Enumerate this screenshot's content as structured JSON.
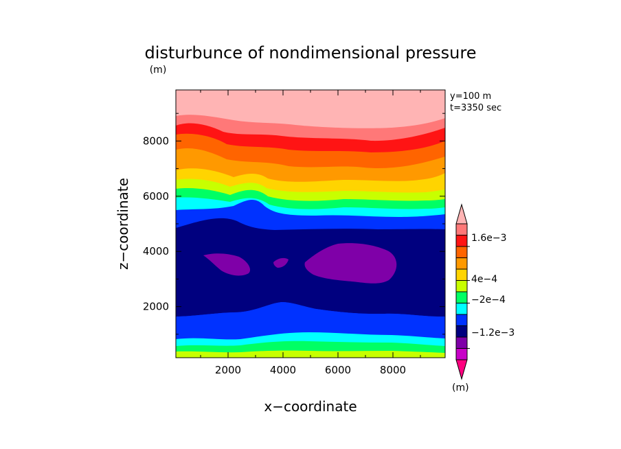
{
  "chart_data": {
    "type": "heatmap",
    "title": "disturbunce of nondimensional pressure",
    "units_label": "(m)",
    "xlabel": "x−coordinate",
    "ylabel": "z−coordinate",
    "xlim": [
      100,
      9900
    ],
    "ylim": [
      150,
      9850
    ],
    "xticks": [
      2000,
      4000,
      6000,
      8000
    ],
    "yticks": [
      2000,
      4000,
      6000,
      8000
    ],
    "xtick_labels": [
      "2000",
      "4000",
      "6000",
      "8000"
    ],
    "ytick_labels": [
      "2000",
      "4000",
      "6000",
      "8000"
    ],
    "annotations": [
      "y=100 m",
      "t=3350 sec"
    ],
    "colorbar": {
      "labels": [
        "1.6e−3",
        "4e−4",
        "−2e−4",
        "−1.2e−3"
      ],
      "units": "(m)",
      "colors": [
        "#ff007f",
        "#c800c8",
        "#7f00a8",
        "#00007f",
        "#0032ff",
        "#00ffff",
        "#00ff64",
        "#c8ff00",
        "#ffd400",
        "#ff9900",
        "#ff6400",
        "#ff1414",
        "#ff7878",
        "#ffb4b4"
      ]
    }
  }
}
